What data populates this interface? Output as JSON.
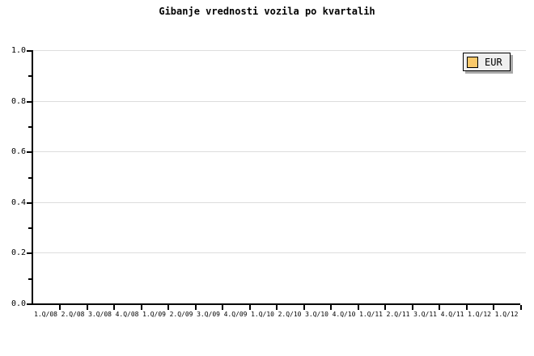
{
  "chart_data": {
    "type": "line",
    "title": "Gibanje vrednosti vozila po kvartalih",
    "categories": [
      "1.Q/08",
      "2.Q/08",
      "3.Q/08",
      "4.Q/08",
      "1.Q/09",
      "2.Q/09",
      "3.Q/09",
      "4.Q/09",
      "1.Q/10",
      "2.Q/10",
      "3.Q/10",
      "4.Q/10",
      "1.Q/11",
      "2.Q/11",
      "3.Q/11",
      "4.Q/11",
      "1.Q/12",
      "1.Q/12"
    ],
    "series": [
      {
        "name": "EUR",
        "color": "#FAC96B",
        "values": []
      }
    ],
    "xlabel": "",
    "ylabel": "",
    "ylim": [
      0.0,
      1.0
    ],
    "y_tick_labels_top_to_bottom": [
      "1.0",
      "0.8",
      "0.6",
      "0.4",
      "0.2",
      "0.0"
    ],
    "y_minor_tick_step": 0.1,
    "grid": "horizontal-major",
    "legend_position": "top-right"
  },
  "legend": {
    "items": [
      {
        "label": "EUR",
        "swatch_color": "#FAC96B"
      }
    ]
  },
  "colors": {
    "background": "#FFFFFF",
    "axis": "#000000",
    "grid": "#DDDDDD",
    "text": "#000000",
    "legend_background": "#EFEFEF",
    "legend_border": "#000000",
    "legend_shadow": "#A9A9A9"
  }
}
